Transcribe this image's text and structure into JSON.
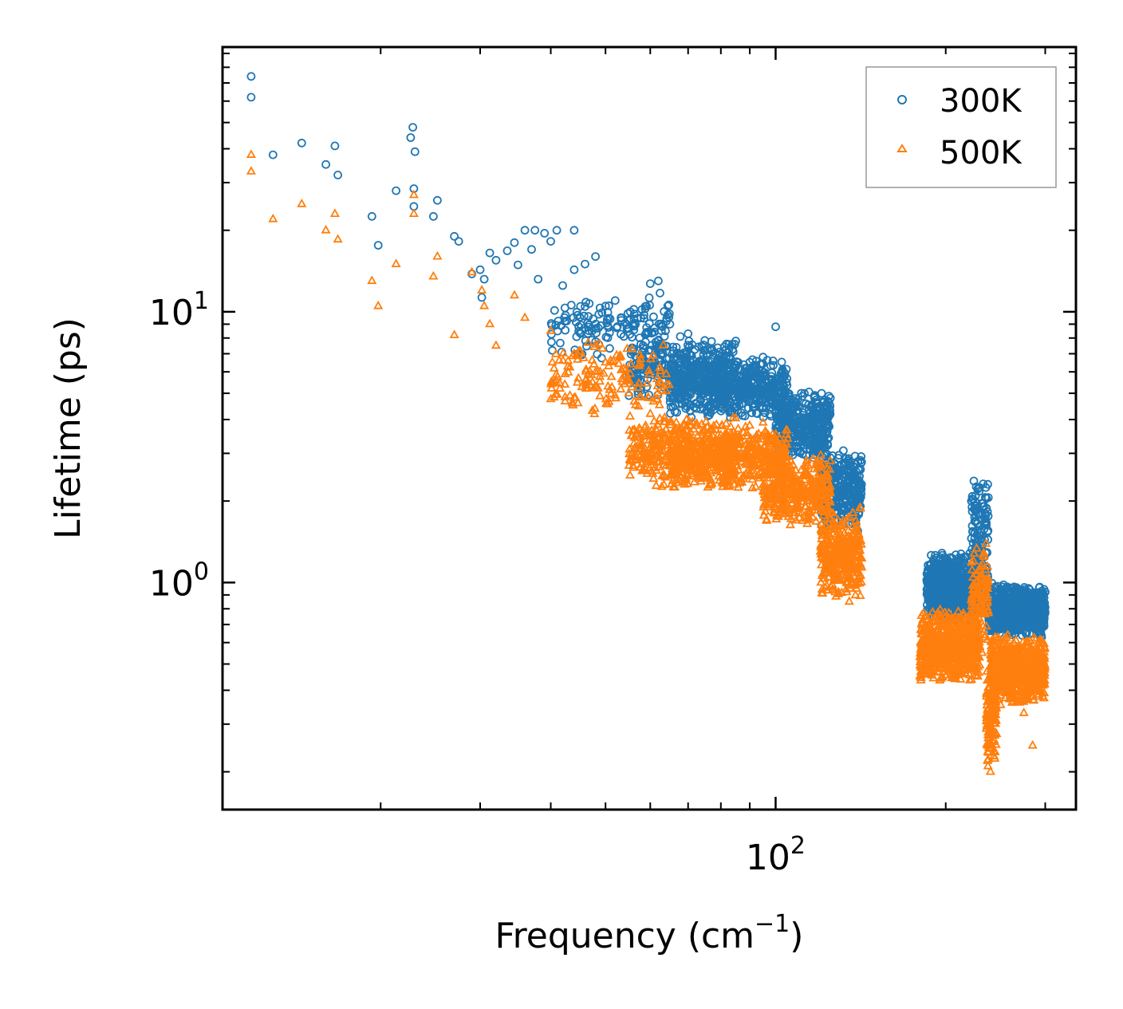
{
  "chart_data": {
    "type": "scatter",
    "title": "",
    "xlabel": "Frequency (cm",
    "xlabel_sup": "−1",
    "xlabel_end": ")",
    "ylabel": "Lifetime (ps)",
    "xscale": "log",
    "yscale": "log",
    "xlim": [
      10.5,
      340
    ],
    "ylim": [
      0.145,
      95
    ],
    "xticks": [
      {
        "value": 100,
        "base": "10",
        "exp": "2"
      }
    ],
    "yticks": [
      {
        "value": 1,
        "base": "10",
        "exp": "0"
      },
      {
        "value": 10,
        "base": "10",
        "exp": "1"
      }
    ],
    "legend": {
      "position": "top-right",
      "entries": [
        "300K",
        "500K"
      ]
    },
    "series": [
      {
        "name": "300K",
        "color": "#1f77b4",
        "marker": "circle",
        "points": [
          [
            11.8,
            74
          ],
          [
            11.8,
            62
          ],
          [
            12.9,
            38
          ],
          [
            14.5,
            42
          ],
          [
            16,
            35
          ],
          [
            16.6,
            41
          ],
          [
            16.8,
            32
          ],
          [
            19.3,
            22.5
          ],
          [
            19.8,
            17.6
          ],
          [
            21.3,
            28
          ],
          [
            22.9,
            24.5
          ],
          [
            22.9,
            28.5
          ],
          [
            22.6,
            44
          ],
          [
            22.8,
            48
          ],
          [
            23,
            39
          ],
          [
            24.8,
            22.5
          ],
          [
            25.2,
            25.8
          ],
          [
            27,
            19
          ],
          [
            27.5,
            18.2
          ],
          [
            29,
            13.8
          ],
          [
            30,
            14.3
          ],
          [
            30.2,
            11.3
          ],
          [
            30.5,
            13.2
          ],
          [
            31.2,
            16.5
          ],
          [
            32,
            15.5
          ],
          [
            33.5,
            16.8
          ],
          [
            34.5,
            18
          ],
          [
            35,
            14.9
          ],
          [
            36,
            20
          ],
          [
            37,
            17
          ],
          [
            37.5,
            20
          ],
          [
            38,
            13.2
          ],
          [
            39,
            19.5
          ],
          [
            40,
            18.2
          ],
          [
            41,
            20
          ],
          [
            42,
            12.5
          ],
          [
            44,
            14.3
          ],
          [
            44,
            20
          ],
          [
            46,
            15
          ],
          [
            48,
            16
          ],
          [
            50,
            10.5
          ],
          [
            52,
            11
          ],
          [
            55,
            9.3
          ],
          [
            58,
            10.2
          ],
          [
            60,
            12.7
          ],
          [
            62,
            13
          ],
          [
            65,
            9
          ],
          [
            70,
            8.3
          ],
          [
            75,
            7.2
          ],
          [
            80,
            6.8
          ],
          [
            85,
            7.8
          ],
          [
            90,
            6.2
          ],
          [
            95,
            6.8
          ],
          [
            100,
            8.8
          ]
        ],
        "bands": [
          {
            "x": [
              40,
              65
            ],
            "y": [
              6.5,
              12
            ],
            "n": 150
          },
          {
            "x": [
              55,
              85
            ],
            "y": [
              4.8,
              8.2
            ],
            "n": 320
          },
          {
            "x": [
              65,
              105
            ],
            "y": [
              4.0,
              6.8
            ],
            "n": 600
          },
          {
            "x": [
              100,
              125
            ],
            "y": [
              2.8,
              5.2
            ],
            "n": 420
          },
          {
            "x": [
              120,
              142
            ],
            "y": [
              1.5,
              3.2
            ],
            "n": 320
          },
          {
            "x": [
              185,
              230
            ],
            "y": [
              0.72,
              1.3
            ],
            "n": 700
          },
          {
            "x": [
              222,
              238
            ],
            "y": [
              0.9,
              2.5
            ],
            "n": 120
          },
          {
            "x": [
              238,
              300
            ],
            "y": [
              0.62,
              1.0
            ],
            "n": 700
          }
        ]
      },
      {
        "name": "500K",
        "color": "#ff7f0e",
        "marker": "triangle",
        "points": [
          [
            11.8,
            38
          ],
          [
            11.8,
            33
          ],
          [
            12.9,
            22
          ],
          [
            14.5,
            25
          ],
          [
            16,
            20
          ],
          [
            16.6,
            23
          ],
          [
            16.8,
            18.5
          ],
          [
            19.3,
            13
          ],
          [
            19.8,
            10.5
          ],
          [
            21.3,
            15
          ],
          [
            22.9,
            23
          ],
          [
            22.9,
            27
          ],
          [
            24.8,
            13.5
          ],
          [
            25.2,
            16
          ],
          [
            27,
            8.2
          ],
          [
            29,
            14
          ],
          [
            30.2,
            12
          ],
          [
            30.5,
            10.5
          ],
          [
            31.2,
            9
          ],
          [
            32,
            7.5
          ],
          [
            34.5,
            11.5
          ],
          [
            36,
            9.5
          ],
          [
            40,
            8.5
          ],
          [
            44,
            7
          ],
          [
            48,
            6
          ],
          [
            50,
            6.5
          ],
          [
            55,
            5
          ],
          [
            60,
            4.2
          ],
          [
            65,
            3.5
          ],
          [
            70,
            3.2
          ],
          [
            75,
            2.8
          ],
          [
            80,
            3.5
          ],
          [
            90,
            3.8
          ],
          [
            95,
            3.9
          ],
          [
            97,
            3.5
          ],
          [
            105,
            3.4
          ],
          [
            118,
            1.9
          ],
          [
            120,
            1.3
          ],
          [
            122,
            1.4
          ],
          [
            135,
            0.85
          ],
          [
            140,
            1.0
          ],
          [
            180,
            0.45
          ],
          [
            200,
            0.5
          ],
          [
            214,
            0.76
          ],
          [
            224,
            1.2
          ],
          [
            232,
            0.55
          ],
          [
            240,
            0.2
          ],
          [
            260,
            0.4
          ],
          [
            275,
            0.33
          ],
          [
            285,
            0.25
          ]
        ],
        "bands": [
          {
            "x": [
              40,
              65
            ],
            "y": [
              4.0,
              8.0
            ],
            "n": 150
          },
          {
            "x": [
              55,
              85
            ],
            "y": [
              2.2,
              4.3
            ],
            "n": 400
          },
          {
            "x": [
              65,
              105
            ],
            "y": [
              2.2,
              3.8
            ],
            "n": 600
          },
          {
            "x": [
              95,
              125
            ],
            "y": [
              1.6,
              3.0
            ],
            "n": 400
          },
          {
            "x": [
              120,
              142
            ],
            "y": [
              0.85,
              1.9
            ],
            "n": 350
          },
          {
            "x": [
              180,
              230
            ],
            "y": [
              0.42,
              0.8
            ],
            "n": 700
          },
          {
            "x": [
              222,
              238
            ],
            "y": [
              0.55,
              1.4
            ],
            "n": 120
          },
          {
            "x": [
              236,
              246
            ],
            "y": [
              0.2,
              0.5
            ],
            "n": 120
          },
          {
            "x": [
              240,
              300
            ],
            "y": [
              0.35,
              0.65
            ],
            "n": 650
          }
        ]
      }
    ]
  }
}
